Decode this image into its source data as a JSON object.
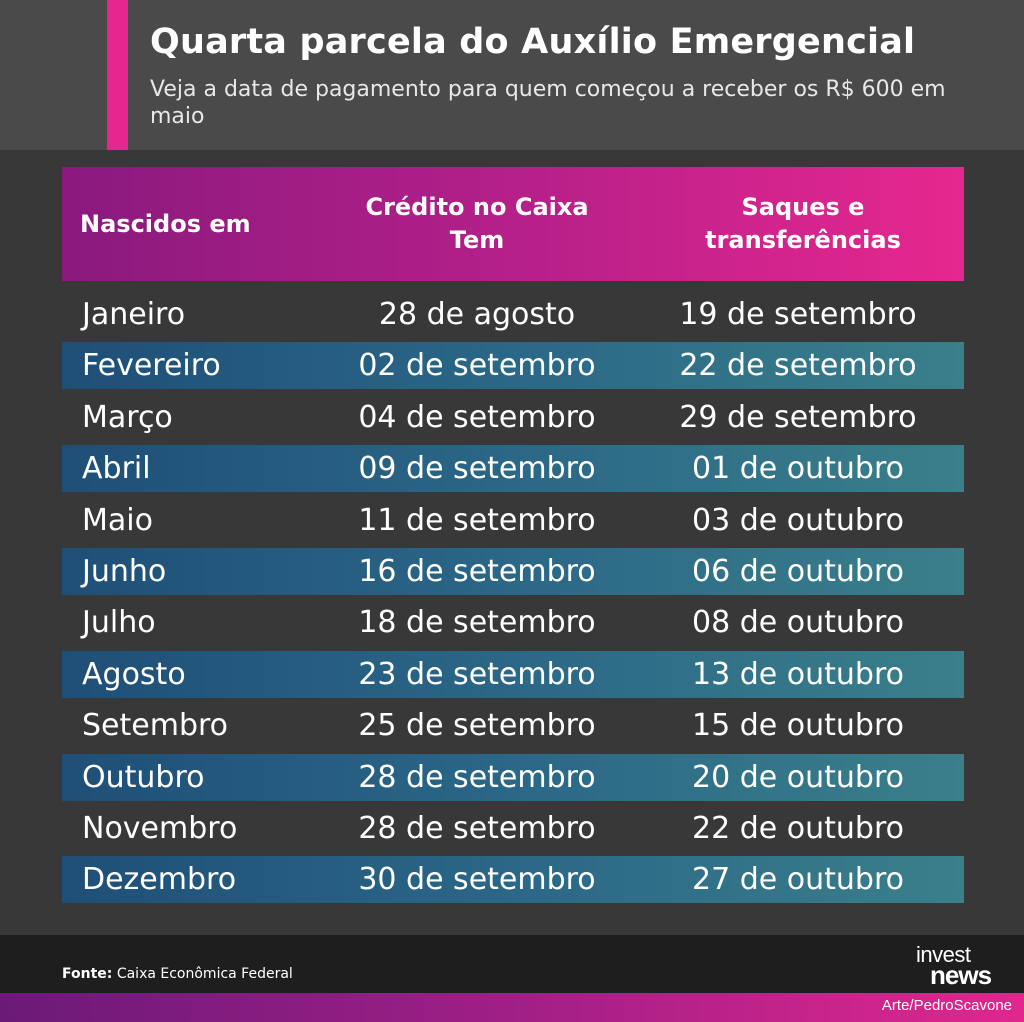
{
  "header": {
    "title": "Quarta parcela do Auxílio Emergencial",
    "subtitle": "Veja a data de pagamento para quem começou a receber os R$ 600 em maio",
    "accent_color": "#e6278f"
  },
  "table": {
    "columns": [
      "Nascidos em",
      "Crédito no Caixa Tem",
      "Saques e transferências"
    ],
    "rows": [
      [
        "Janeiro",
        "28 de agosto",
        "19 de setembro"
      ],
      [
        "Fevereiro",
        "02 de setembro",
        "22 de setembro"
      ],
      [
        "Março",
        "04 de setembro",
        "29 de setembro"
      ],
      [
        "Abril",
        "09 de setembro",
        "01 de outubro"
      ],
      [
        "Maio",
        "11 de setembro",
        "03 de outubro"
      ],
      [
        "Junho",
        "16 de setembro",
        "06 de outubro"
      ],
      [
        "Julho",
        "18 de setembro",
        "08 de outubro"
      ],
      [
        "Agosto",
        "23 de setembro",
        "13 de outubro"
      ],
      [
        "Setembro",
        "25 de setembro",
        "15 de outubro"
      ],
      [
        "Outubro",
        "28 de setembro",
        "20 de outubro"
      ],
      [
        "Novembro",
        "28 de setembro",
        "22 de outubro"
      ],
      [
        "Dezembro",
        "30 de setembro",
        "27 de outubro"
      ]
    ]
  },
  "footer": {
    "source_label": "Fonte:",
    "source_value": " Caixa Econômica Federal",
    "logo_line1": "invest",
    "logo_line2": "news",
    "credit": "Arte/PedroScavone"
  }
}
